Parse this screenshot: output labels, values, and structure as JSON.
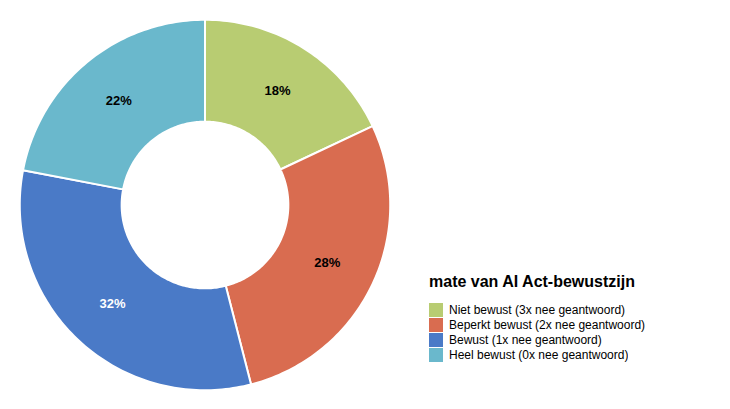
{
  "chart_data": {
    "type": "pie",
    "title": "mate van AI Act-bewustzijn",
    "categories": [
      "Niet bewust (3x nee geantwoord)",
      "Beperkt bewust (2x nee geantwoord)",
      "Bewust (1x nee geantwoord)",
      "Heel bewust (0x nee geantwoord)"
    ],
    "values": [
      18,
      28,
      32,
      22
    ],
    "value_labels": [
      "18%",
      "28%",
      "32%",
      "22%"
    ],
    "colors": [
      "#b8cc72",
      "#d96c50",
      "#4a7ac7",
      "#6ab8cc"
    ],
    "data_labels": true,
    "legend": "right"
  }
}
